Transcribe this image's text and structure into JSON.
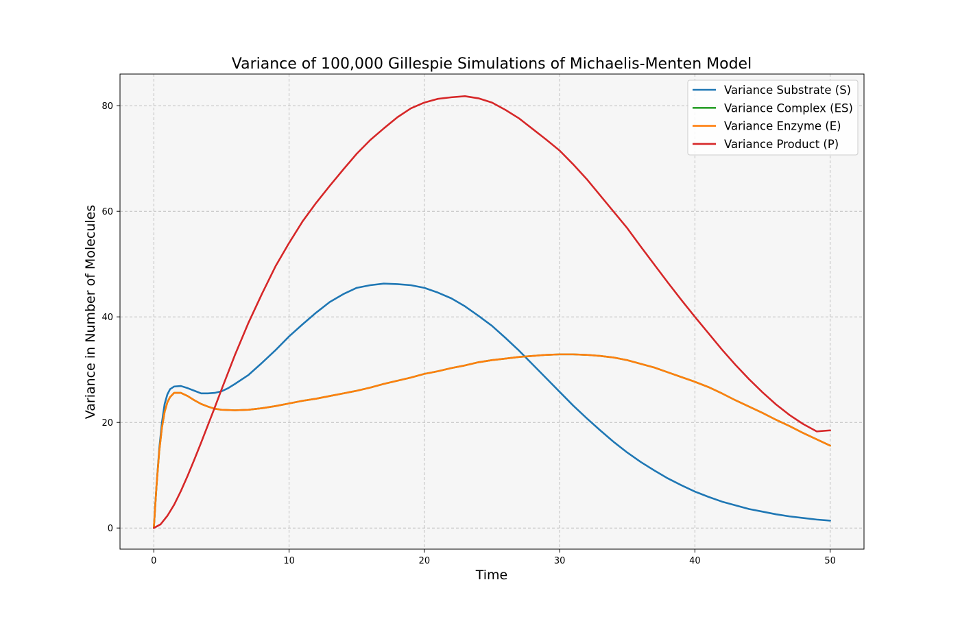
{
  "chart_data": {
    "type": "line",
    "title": "Variance of 100,000 Gillespie Simulations of Michaelis-Menten Model",
    "xlabel": "Time",
    "ylabel": "Variance in Number of Molecules",
    "xlim": [
      -2.5,
      52.5
    ],
    "ylim": [
      -4,
      86
    ],
    "xticks": [
      0,
      10,
      20,
      30,
      40,
      50
    ],
    "yticks": [
      0,
      20,
      40,
      60,
      80
    ],
    "grid": true,
    "background": "#f6f6f6",
    "legend_position": "top-right",
    "series": [
      {
        "name": "Variance Substrate (S)",
        "color": "#1f77b4",
        "x": [
          0,
          0.2,
          0.4,
          0.6,
          0.8,
          1.0,
          1.2,
          1.5,
          2.0,
          2.5,
          3.0,
          3.5,
          4.0,
          4.5,
          5.0,
          5.5,
          6.0,
          7.0,
          8.0,
          9.0,
          10.0,
          11.0,
          12.0,
          13.0,
          14.0,
          15.0,
          16.0,
          17.0,
          18.0,
          19.0,
          20.0,
          21.0,
          22.0,
          23.0,
          24.0,
          25.0,
          26.0,
          27.0,
          28.0,
          29.0,
          30.0,
          31.0,
          32.0,
          33.0,
          34.0,
          35.0,
          36.0,
          37.0,
          38.0,
          39.0,
          40.0,
          41.0,
          42.0,
          43.0,
          44.0,
          45.0,
          46.0,
          47.0,
          48.0,
          49.0,
          50.0
        ],
        "y": [
          0,
          8,
          15,
          20,
          23.5,
          25.3,
          26.3,
          26.8,
          26.9,
          26.5,
          26.0,
          25.5,
          25.5,
          25.6,
          25.9,
          26.5,
          27.3,
          29.0,
          31.3,
          33.7,
          36.3,
          38.6,
          40.8,
          42.8,
          44.3,
          45.5,
          46.0,
          46.3,
          46.2,
          46.0,
          45.5,
          44.6,
          43.5,
          42.0,
          40.2,
          38.3,
          36.0,
          33.6,
          31.0,
          28.4,
          25.8,
          23.2,
          20.8,
          18.5,
          16.3,
          14.3,
          12.5,
          10.9,
          9.4,
          8.1,
          6.9,
          5.9,
          5.0,
          4.3,
          3.6,
          3.1,
          2.6,
          2.2,
          1.9,
          1.6,
          1.4
        ]
      },
      {
        "name": "Variance Complex (ES)",
        "color": "#2ca02c",
        "x": [
          0,
          0.2,
          0.4,
          0.6,
          0.8,
          1.0,
          1.2,
          1.5,
          2.0,
          2.5,
          3.0,
          3.5,
          4.0,
          4.5,
          5.0,
          6.0,
          7.0,
          8.0,
          9.0,
          10.0,
          11.0,
          12.0,
          13.0,
          14.0,
          15.0,
          16.0,
          17.0,
          18.0,
          19.0,
          20.0,
          21.0,
          22.0,
          23.0,
          24.0,
          25.0,
          26.0,
          27.0,
          28.0,
          29.0,
          30.0,
          31.0,
          32.0,
          33.0,
          34.0,
          35.0,
          36.0,
          37.0,
          38.0,
          39.0,
          40.0,
          41.0,
          42.0,
          43.0,
          44.0,
          45.0,
          46.0,
          47.0,
          48.0,
          49.0,
          50.0
        ],
        "y": [
          0,
          8,
          14.5,
          19,
          22,
          23.8,
          24.8,
          25.6,
          25.6,
          25.0,
          24.2,
          23.5,
          23.0,
          22.6,
          22.4,
          22.3,
          22.4,
          22.7,
          23.1,
          23.6,
          24.1,
          24.5,
          25.0,
          25.5,
          26.0,
          26.6,
          27.3,
          27.9,
          28.5,
          29.2,
          29.7,
          30.3,
          30.8,
          31.4,
          31.8,
          32.1,
          32.4,
          32.6,
          32.8,
          32.9,
          32.9,
          32.8,
          32.6,
          32.3,
          31.8,
          31.1,
          30.4,
          29.5,
          28.6,
          27.7,
          26.7,
          25.5,
          24.2,
          23.0,
          21.8,
          20.5,
          19.3,
          18.0,
          16.8,
          15.6
        ]
      },
      {
        "name": "Variance Enzyme (E)",
        "color": "#ff7f0e",
        "x": [
          0,
          0.2,
          0.4,
          0.6,
          0.8,
          1.0,
          1.2,
          1.5,
          2.0,
          2.5,
          3.0,
          3.5,
          4.0,
          4.5,
          5.0,
          6.0,
          7.0,
          8.0,
          9.0,
          10.0,
          11.0,
          12.0,
          13.0,
          14.0,
          15.0,
          16.0,
          17.0,
          18.0,
          19.0,
          20.0,
          21.0,
          22.0,
          23.0,
          24.0,
          25.0,
          26.0,
          27.0,
          28.0,
          29.0,
          30.0,
          31.0,
          32.0,
          33.0,
          34.0,
          35.0,
          36.0,
          37.0,
          38.0,
          39.0,
          40.0,
          41.0,
          42.0,
          43.0,
          44.0,
          45.0,
          46.0,
          47.0,
          48.0,
          49.0,
          50.0
        ],
        "y": [
          0,
          8,
          14.5,
          19,
          22,
          23.8,
          24.8,
          25.6,
          25.6,
          25.0,
          24.2,
          23.5,
          23.0,
          22.6,
          22.4,
          22.3,
          22.4,
          22.7,
          23.1,
          23.6,
          24.1,
          24.5,
          25.0,
          25.5,
          26.0,
          26.6,
          27.3,
          27.9,
          28.5,
          29.2,
          29.7,
          30.3,
          30.8,
          31.4,
          31.8,
          32.1,
          32.4,
          32.6,
          32.8,
          32.9,
          32.9,
          32.8,
          32.6,
          32.3,
          31.8,
          31.1,
          30.4,
          29.5,
          28.6,
          27.7,
          26.7,
          25.5,
          24.2,
          23.0,
          21.8,
          20.5,
          19.3,
          18.0,
          16.8,
          15.6
        ]
      },
      {
        "name": "Variance Product (P)",
        "color": "#d62728",
        "x": [
          0,
          0.5,
          1.0,
          1.5,
          2.0,
          2.5,
          3.0,
          3.5,
          4.0,
          4.5,
          5.0,
          5.5,
          6.0,
          7.0,
          8.0,
          9.0,
          10.0,
          11.0,
          12.0,
          13.0,
          14.0,
          15.0,
          16.0,
          17.0,
          18.0,
          19.0,
          20.0,
          21.0,
          22.0,
          23.0,
          24.0,
          25.0,
          26.0,
          27.0,
          28.0,
          29.0,
          30.0,
          31.0,
          32.0,
          33.0,
          34.0,
          35.0,
          36.0,
          37.0,
          38.0,
          39.0,
          40.0,
          41.0,
          42.0,
          43.0,
          44.0,
          45.0,
          46.0,
          47.0,
          48.0,
          49.0,
          50.0
        ],
        "y": [
          0,
          0.7,
          2.3,
          4.4,
          7.0,
          9.9,
          13.0,
          16.2,
          19.5,
          22.8,
          26.2,
          29.5,
          32.8,
          38.9,
          44.4,
          49.6,
          54.0,
          58.1,
          61.6,
          64.8,
          67.9,
          70.9,
          73.5,
          75.7,
          77.8,
          79.5,
          80.6,
          81.3,
          81.6,
          81.8,
          81.4,
          80.6,
          79.2,
          77.6,
          75.6,
          73.6,
          71.5,
          68.9,
          66.1,
          63.0,
          59.9,
          56.8,
          53.3,
          49.9,
          46.5,
          43.2,
          40.0,
          36.9,
          33.8,
          30.9,
          28.2,
          25.7,
          23.4,
          21.4,
          19.7,
          18.3,
          18.5
        ]
      }
    ]
  }
}
